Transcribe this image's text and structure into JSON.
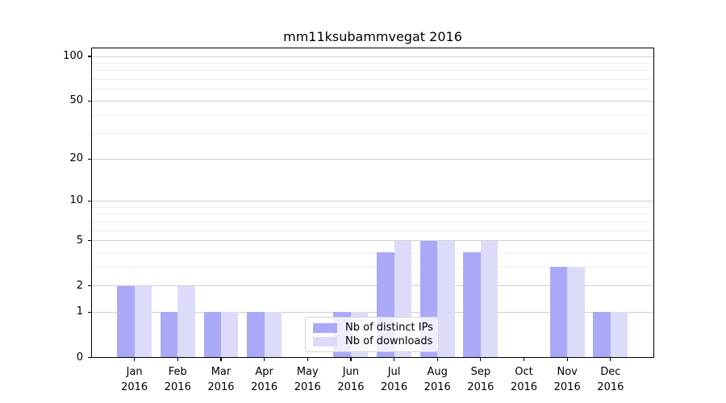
{
  "title": "mm11ksubammvegat 2016",
  "legend": {
    "items": [
      {
        "label": "Nb of distinct IPs"
      },
      {
        "label": "Nb of downloads"
      }
    ]
  },
  "chart_data": {
    "type": "bar",
    "title": "mm11ksubammvegat 2016",
    "categories": [
      "Jan",
      "Feb",
      "Mar",
      "Apr",
      "May",
      "Jun",
      "Jul",
      "Aug",
      "Sep",
      "Oct",
      "Nov",
      "Dec"
    ],
    "year_label": "2016",
    "series": [
      {
        "name": "Nb of distinct IPs",
        "color": "#a9a9f8",
        "values": [
          2,
          1,
          1,
          1,
          0,
          1,
          4,
          5,
          4,
          0,
          3,
          1
        ]
      },
      {
        "name": "Nb of downloads",
        "color": "#dcdcfa",
        "values": [
          2,
          2,
          1,
          1,
          0,
          1,
          5,
          5,
          5,
          0,
          3,
          1
        ]
      }
    ],
    "yscale": "log1p",
    "ylim": [
      0,
      115
    ],
    "y_major_ticks": [
      100,
      50,
      20,
      10,
      5,
      2,
      1,
      0
    ],
    "y_minor_gridlines": [
      3,
      4,
      6,
      7,
      8,
      9,
      30,
      40,
      60,
      70,
      80,
      90
    ],
    "grid": "horizontal major + minor",
    "legend_position": "lower center inside plot",
    "colors": {
      "major_grid": "#cfcfcf",
      "minor_grid": "#ededed",
      "spine": "#000000",
      "text": "#000000"
    }
  }
}
